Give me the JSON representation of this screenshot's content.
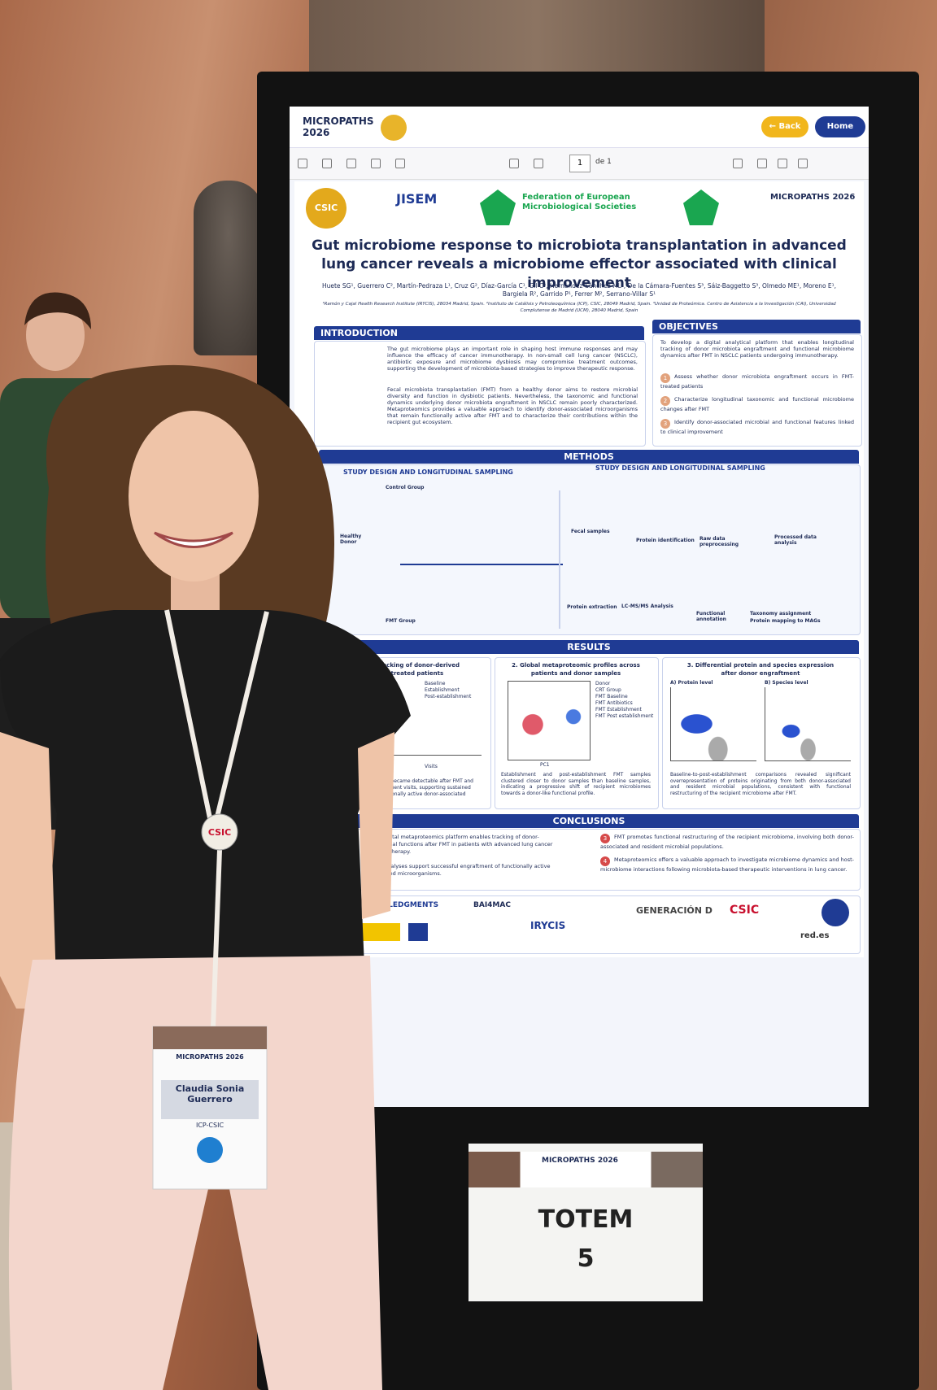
{
  "viewer": {
    "brand": "MICROPATHS 2026",
    "back": "← Back",
    "home": "Home",
    "page": "1",
    "page_total": "de 1"
  },
  "poster": {
    "logos": [
      "CSIC",
      "JISEM",
      "Federation of European Microbiological Societies",
      "MICROPATHS 2026"
    ],
    "title": "Gut microbiome response to microbiota transplantation in advanced lung cancer reveals a microbiome effector associated with clinical improvement",
    "authors": "Huete SG¹, Guerrero C², Martín-Pedraza L¹, Cruz G², Díaz-García C¹, Gil C³, Hernández-Sánchez ML³, De la Cámara-Fuentes S³, Sáiz-Baggetto S³, Olmedo ME¹, Moreno E¹, Bargiela R², Garrido P¹, Ferrer M², Serrano-Villar S¹",
    "affiliations": "¹Ramón y Cajal Health Research Institute (IRYCIS), 28034 Madrid, Spain. ²Instituto de Catálisis y Petroleoquímica (ICP), CSIC, 28049 Madrid, Spain. ³Unidad de Proteómica. Centro de Asistencia a la Investigación (CAI), Universidad Complutense de Madrid (UCM), 28040 Madrid, Spain",
    "introduction": {
      "heading": "INTRODUCTION",
      "paragraphs": [
        "The gut microbiome plays an important role in shaping host immune responses and may influence the efficacy of cancer immunotherapy. In non-small cell lung cancer (NSCLC), antibiotic exposure and microbiome dysbiosis may compromise treatment outcomes, supporting the development of microbiota-based strategies to improve therapeutic response.",
        "Fecal microbiota transplantation (FMT) from a healthy donor aims to restore microbial diversity and function in dysbiotic patients. Nevertheless, the taxonomic and functional dynamics underlying donor microbiota engraftment in NSCLC remain poorly characterized. Metaproteomics provides a valuable approach to identify donor-associated microorganisms that remain functionally active after FMT and to characterize their contributions within the recipient gut ecosystem."
      ]
    },
    "objectives": {
      "heading": "OBJECTIVES",
      "lead": "To develop a digital analytical platform that enables longitudinal tracking of donor microbiota engraftment and functional microbiome dynamics after FMT in NSCLC patients undergoing immunotherapy.",
      "items": [
        {
          "number": "1",
          "text": "Assess whether donor microbiota engraftment occurs in FMT-treated patients"
        },
        {
          "number": "2",
          "text": "Characterize longitudinal taxonomic and functional microbiome changes after FMT"
        },
        {
          "number": "3",
          "text": "Identify donor-associated microbial and functional features linked to clinical improvement"
        }
      ]
    },
    "methods": {
      "heading": "METHODS",
      "left_title": "STUDY DESIGN AND LONGITUDINAL SAMPLING",
      "right_title": "STUDY DESIGN AND LONGITUDINAL SAMPLING",
      "left_labels": [
        "Control Group",
        "Healthy Donor",
        "FMT Group"
      ],
      "right_labels": [
        "Fecal samples",
        "Protein identification",
        "Raw data preprocessing",
        "Processed data analysis",
        "Protein extraction",
        "LC-MS/MS Analysis",
        "Functional annotation",
        "Taxonomy assignment",
        "Protein mapping to MAGs"
      ]
    },
    "results": {
      "heading": "RESULTS",
      "panels": [
        {
          "title": [
            "racking of donor-derived",
            "MT-treated patients"
          ],
          "legend": [
            "Baseline",
            "Establishment",
            "Post-establishment"
          ],
          "axis": "Visits",
          "caption": [
            "ins became detectable after FMT and",
            "sequent visits, supporting sustained",
            "nctionally active donor-associated"
          ]
        },
        {
          "title": [
            "2. Global metaproteomic profiles across",
            "patients and donor samples"
          ],
          "legend": [
            "Donor",
            "CRT Group",
            "FMT Baseline",
            "FMT Antibiotics",
            "FMT Establishment",
            "FMT Post establishment"
          ],
          "axis": "PC1",
          "caption": [
            "Establishment and post-establishment FMT samples clustered closer to donor samples than baseline samples, indicating a progressive shift of recipient microbiomes towards a donor-like functional profile."
          ]
        },
        {
          "title": [
            "3. Differential protein and species expression",
            "after donor engraftment"
          ],
          "subtitles": [
            "A) Protein level",
            "B) Species level"
          ],
          "caption": [
            "Baseline-to-post-establishment comparisons revealed significant overrepresentation of proteins originating from both donor-associated and resident microbial populations, consistent with functional restructuring of the recipient microbiome after FMT."
          ]
        }
      ]
    },
    "conclusions": {
      "heading": "CONCLUSIONS",
      "left_lines": [
        "oped digital metaproteomics platform enables tracking of donor-",
        "d microbial functions after FMT in patients with advanced lung cancer",
        "immunotherapy.",
        "tional analyses support successful engraftment of functionally active",
        "associated microorganisms."
      ],
      "items": [
        {
          "number": "3",
          "text": "FMT promotes functional restructuring of the recipient microbiome, involving both donor-associated and resident microbial populations."
        },
        {
          "number": "4",
          "text": "Metaproteomics offers a valuable approach to investigate microbiome dynamics and host-microbiome interactions following microbiota-based therapeutic interventions in lung cancer."
        }
      ]
    },
    "acknowledgments": {
      "heading": "NOWLEDGMENTS",
      "logos": [
        "BAI4MAC",
        "IRYCIS",
        "GENERACIÓN D",
        "CSIC",
        "red.es"
      ]
    }
  },
  "sign": {
    "event": "MICROPATHS 2026",
    "label": "TOTEM",
    "number": "5"
  },
  "badge": {
    "event": "MICROPATHS 2026",
    "name": "Claudia Sonia Guerrero",
    "affiliation": "ICP-CSIC",
    "pendant": "CSIC"
  }
}
